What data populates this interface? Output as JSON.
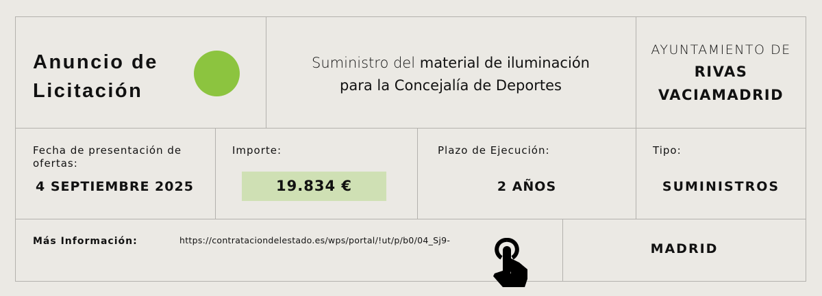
{
  "header": {
    "title_line1": "Anuncio de",
    "title_line2": "Licitación",
    "accent_color": "#8cc43f",
    "description_light": "Suministro del ",
    "description_bold1": "material de iluminación",
    "description_bold2": "para la Concejalía de Deportes",
    "org_label": "AYUNTAMIENTO DE",
    "org_name_line1": "RIVAS",
    "org_name_line2": "VACIAMADRID"
  },
  "details": {
    "date_label": "Fecha de presentación de ofertas:",
    "date_value": "4 SEPTIEMBRE 2025",
    "amount_label": "Importe:",
    "amount_value": "19.834 €",
    "amount_bg": "#cfe0b4",
    "term_label": "Plazo de Ejecución:",
    "term_value": "2 AÑOS",
    "type_label": "Tipo:",
    "type_value": "SUMINISTROS"
  },
  "footer": {
    "info_label": "Más Información:",
    "url": "https://contrataciondelestado.es/wps/portal/!ut/p/b0/04_Sj9-",
    "icon": "hand-pointer-icon",
    "location": "MADRID"
  }
}
